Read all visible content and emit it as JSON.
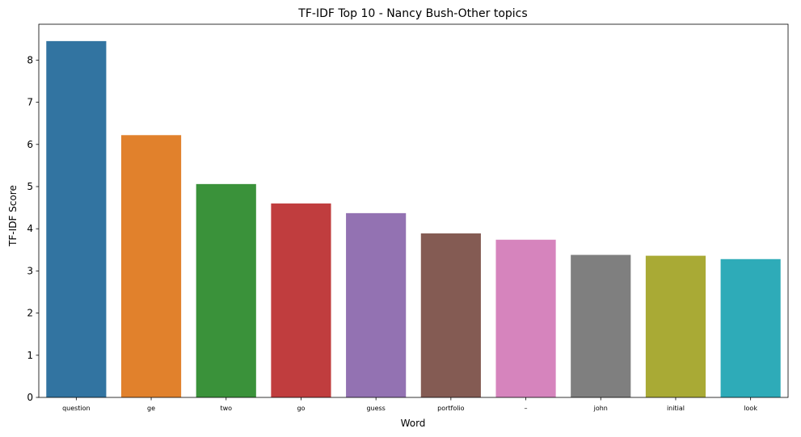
{
  "chart_data": {
    "type": "bar",
    "title": "TF-IDF Top 10 - Nancy Bush-Other topics",
    "xlabel": "Word",
    "ylabel": "TF-IDF Score",
    "categories": [
      "question",
      "ge",
      "two",
      "go",
      "guess",
      "portfolio",
      "–",
      "john",
      "initial",
      "look"
    ],
    "values": [
      8.45,
      6.22,
      5.06,
      4.6,
      4.37,
      3.89,
      3.74,
      3.38,
      3.36,
      3.28
    ],
    "ylim": [
      0,
      8.85
    ],
    "yticks": [
      0,
      1,
      2,
      3,
      4,
      5,
      6,
      7,
      8
    ],
    "colors": [
      "#3274a1",
      "#e1812c",
      "#3a923a",
      "#c03d3e",
      "#9372b2",
      "#845b53",
      "#d684bd",
      "#7f7f7f",
      "#a9aa35",
      "#2eabb8"
    ],
    "grid": false,
    "legend": "none"
  }
}
